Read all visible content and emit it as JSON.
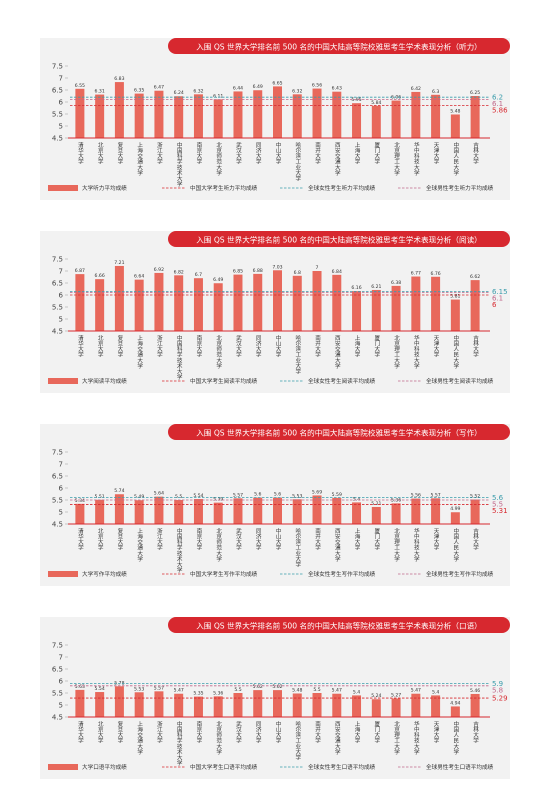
{
  "chart_data": [
    {
      "type": "bar",
      "title": "入围 QS 世界大学排名前 500 名的中国大陆高等院校雅思考生学术表现分析（听力）",
      "categories": [
        "清华大学",
        "北京大学",
        "复旦大学",
        "上海交通大学",
        "浙江大学",
        "中国科学技术大学",
        "南京大学",
        "北京师范大学",
        "武汉大学",
        "同济大学",
        "中山大学",
        "哈尔滨工业大学",
        "南开大学",
        "西安交通大学",
        "上海大学",
        "厦门大学",
        "北京理工大学",
        "华中科技大学",
        "天津大学",
        "中国人民大学",
        "吉林大学"
      ],
      "series": [
        {
          "name": "大学听力平均成绩",
          "color": "#e8685b",
          "values": [
            6.55,
            6.31,
            6.83,
            6.35,
            6.47,
            6.24,
            6.32,
            6.11,
            6.44,
            6.49,
            6.65,
            6.32,
            6.56,
            6.43,
            5.95,
            5.84,
            6.06,
            6.42,
            6.3,
            5.48,
            6.25
          ]
        }
      ],
      "reference_lines": [
        {
          "name": "中国大学考生听力平均成绩",
          "value": 5.86,
          "color": "#d7282f"
        },
        {
          "name": "全球女性考生听力平均成绩",
          "value": 6.2,
          "color": "#3a9cab"
        },
        {
          "name": "全球男性考生听力平均成绩",
          "value": 6.1,
          "color": "#c0678a"
        }
      ],
      "ylim": [
        4.5,
        7.5
      ],
      "yticks": [
        4.5,
        5.0,
        5.5,
        6.0,
        6.5,
        7.0,
        7.5
      ]
    },
    {
      "type": "bar",
      "title": "入围 QS 世界大学排名前 500 名的中国大陆高等院校雅思考生学术表现分析（阅读）",
      "categories": [
        "清华大学",
        "北京大学",
        "复旦大学",
        "上海交通大学",
        "浙江大学",
        "中国科学技术大学",
        "南京大学",
        "北京师范大学",
        "武汉大学",
        "同济大学",
        "中山大学",
        "哈尔滨工业大学",
        "南开大学",
        "西安交通大学",
        "上海大学",
        "厦门大学",
        "北京理工大学",
        "华中科技大学",
        "天津大学",
        "中国人民大学",
        "吉林大学"
      ],
      "series": [
        {
          "name": "大学阅读平均成绩",
          "color": "#e8685b",
          "values": [
            6.87,
            6.66,
            7.21,
            6.64,
            6.92,
            6.82,
            6.7,
            6.49,
            6.85,
            6.88,
            7.03,
            6.8,
            7,
            6.84,
            6.16,
            6.21,
            6.38,
            6.77,
            6.76,
            5.81,
            6.62
          ]
        }
      ],
      "reference_lines": [
        {
          "name": "中国大学考生阅读平均成绩",
          "value": 6,
          "color": "#d7282f"
        },
        {
          "name": "全球女性考生阅读平均成绩",
          "value": 6.15,
          "color": "#3a9cab"
        },
        {
          "name": "全球男性考生阅读平均成绩",
          "value": 6.1,
          "color": "#c0678a"
        }
      ],
      "ylim": [
        4.5,
        7.5
      ],
      "yticks": [
        4.5,
        5.0,
        5.5,
        6.0,
        6.5,
        7.0,
        7.5
      ]
    },
    {
      "type": "bar",
      "title": "入围 QS 世界大学排名前 500 名的中国大陆高等院校雅思考生学术表现分析（写作）",
      "categories": [
        "清华大学",
        "北京大学",
        "复旦大学",
        "上海交通大学",
        "浙江大学",
        "中国科学技术大学",
        "南京大学",
        "北京师范大学",
        "武汉大学",
        "同济大学",
        "中山大学",
        "哈尔滨工业大学",
        "南开大学",
        "西安交通大学",
        "上海大学",
        "厦门大学",
        "北京理工大学",
        "华中科技大学",
        "天津大学",
        "中国人民大学",
        "吉林大学"
      ],
      "series": [
        {
          "name": "大学写作平均成绩",
          "color": "#e8685b",
          "values": [
            5.34,
            5.51,
            5.74,
            5.49,
            5.64,
            5.5,
            5.54,
            5.39,
            5.57,
            5.6,
            5.6,
            5.53,
            5.69,
            5.59,
            5.4,
            5.21,
            5.36,
            5.56,
            5.57,
            4.99,
            5.52
          ]
        }
      ],
      "reference_lines": [
        {
          "name": "中国大学考生写作平均成绩",
          "value": 5.31,
          "color": "#d7282f"
        },
        {
          "name": "全球女性考生写作平均成绩",
          "value": 5.6,
          "color": "#3a9cab"
        },
        {
          "name": "全球男性考生写作平均成绩",
          "value": 5.5,
          "color": "#c0678a"
        }
      ],
      "ylim": [
        4.5,
        7.5
      ],
      "yticks": [
        4.5,
        5.0,
        5.5,
        6.0,
        6.5,
        7.0,
        7.5
      ]
    },
    {
      "type": "bar",
      "title": "入围 QS 世界大学排名前 500 名的中国大陆高等院校雅思考生学术表现分析（口语）",
      "categories": [
        "清华大学",
        "北京大学",
        "复旦大学",
        "上海交通大学",
        "浙江大学",
        "中国科学技术大学",
        "南京大学",
        "北京师范大学",
        "武汉大学",
        "同济大学",
        "中山大学",
        "哈尔滨工业大学",
        "南开大学",
        "西安交通大学",
        "上海大学",
        "厦门大学",
        "北京理工大学",
        "华中科技大学",
        "天津大学",
        "中国人民大学",
        "吉林大学"
      ],
      "series": [
        {
          "name": "大学口语平均成绩",
          "color": "#e8685b",
          "values": [
            5.63,
            5.54,
            5.78,
            5.53,
            5.57,
            5.47,
            5.35,
            5.36,
            5.5,
            5.62,
            5.62,
            5.48,
            5.5,
            5.47,
            5.4,
            5.24,
            5.27,
            5.47,
            5.4,
            4.94,
            5.46
          ]
        }
      ],
      "reference_lines": [
        {
          "name": "中国大学考生口语平均成绩",
          "value": 5.29,
          "color": "#d7282f"
        },
        {
          "name": "全球女性考生口语平均成绩",
          "value": 5.9,
          "color": "#3a9cab"
        },
        {
          "name": "全球男性考生口语平均成绩",
          "value": 5.8,
          "color": "#c0678a"
        }
      ],
      "ylim": [
        4.5,
        7.5
      ],
      "yticks": [
        4.5,
        5.0,
        5.5,
        6.0,
        6.5,
        7.0,
        7.5
      ]
    }
  ]
}
